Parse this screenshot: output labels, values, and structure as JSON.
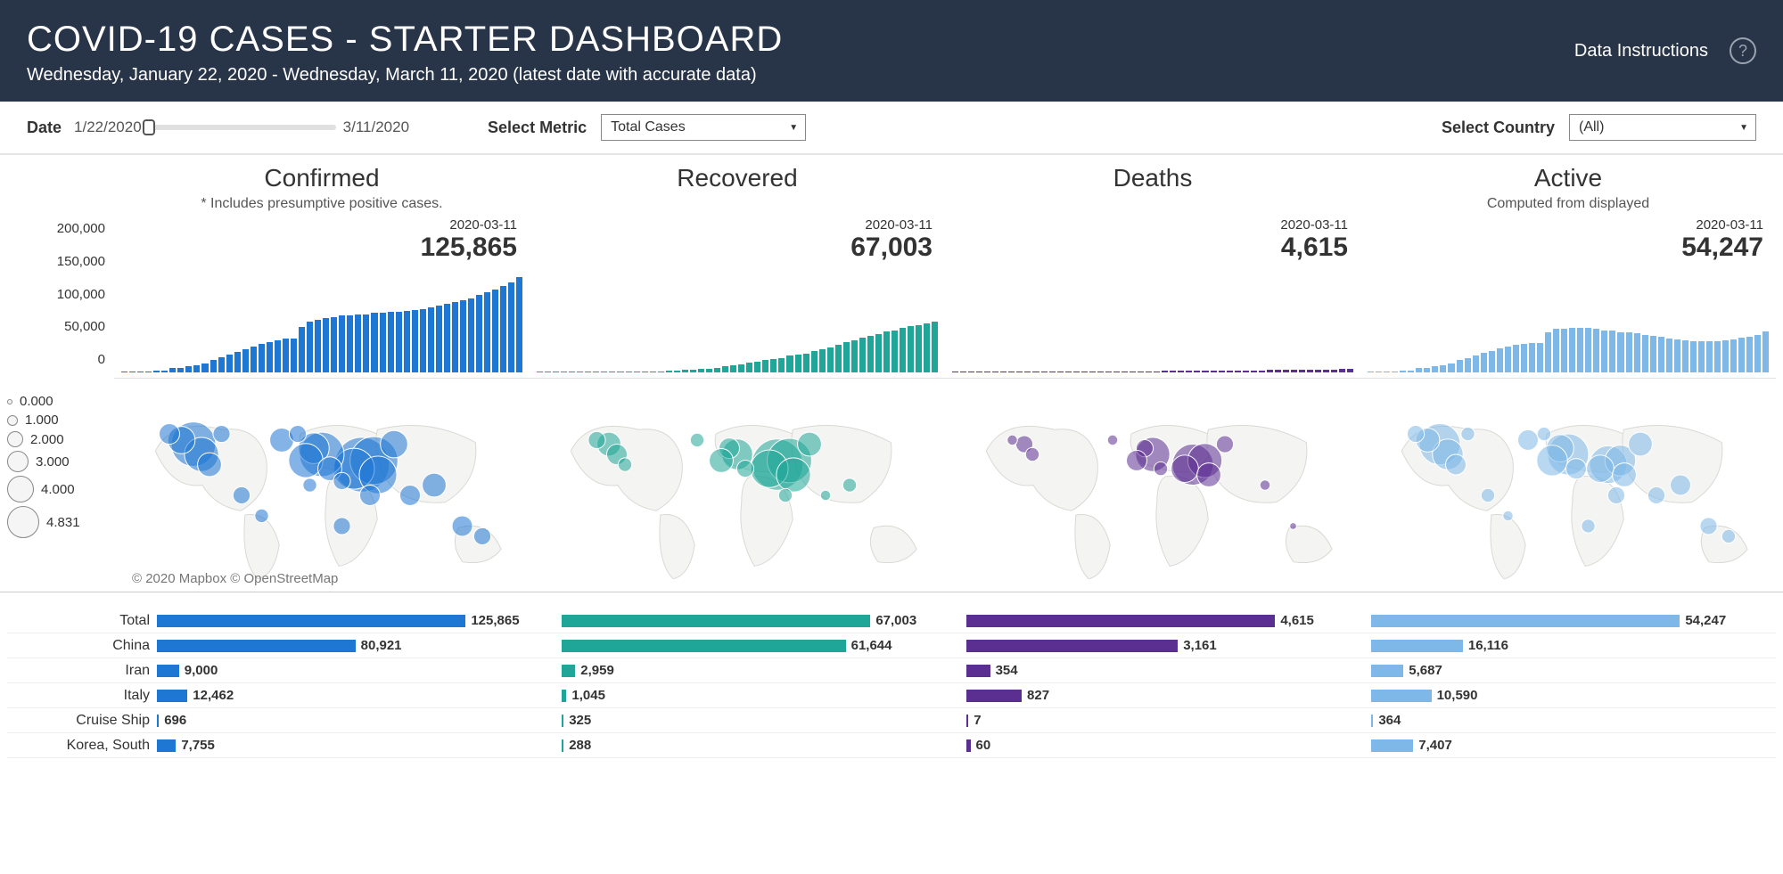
{
  "header": {
    "title": "COVID-19 CASES - STARTER DASHBOARD",
    "subtitle": "Wednesday, January 22, 2020 - Wednesday, March 11, 2020 (latest date with accurate data)",
    "instructions_link": "Data Instructions",
    "help": "?"
  },
  "controls": {
    "date_label": "Date",
    "date_start": "1/22/2020",
    "date_end": "3/11/2020",
    "metric_label": "Select Metric",
    "metric_value": "Total Cases",
    "country_label": "Select Country",
    "country_value": "(All)"
  },
  "colors": {
    "confirmed": "#1f77d4",
    "recovered": "#1fa698",
    "deaths": "#5b2e91",
    "active": "#7db8e8",
    "header_bg": "#283447"
  },
  "panels": [
    {
      "key": "confirmed",
      "title": "Confirmed",
      "note": "* Includes presumptive positive cases.",
      "callout_date": "2020-03-11",
      "callout_value": "125,865",
      "color": "#1f77d4"
    },
    {
      "key": "recovered",
      "title": "Recovered",
      "note": "",
      "callout_date": "2020-03-11",
      "callout_value": "67,003",
      "color": "#1fa698"
    },
    {
      "key": "deaths",
      "title": "Deaths",
      "note": "",
      "callout_date": "2020-03-11",
      "callout_value": "4,615",
      "color": "#5b2e91"
    },
    {
      "key": "active",
      "title": "Active",
      "note": "Computed from displayed",
      "callout_date": "2020-03-11",
      "callout_value": "54,247",
      "color": "#7db8e8"
    }
  ],
  "y_axis": {
    "max": 200000,
    "ticks": [
      "200,000",
      "150,000",
      "100,000",
      "50,000",
      "0"
    ]
  },
  "timeseries": {
    "confirmed": [
      555,
      653,
      941,
      1434,
      2118,
      2927,
      5578,
      6166,
      8234,
      9927,
      12038,
      16787,
      19881,
      23892,
      27635,
      30794,
      34391,
      37120,
      40150,
      42762,
      44802,
      45221,
      60368,
      66885,
      69030,
      71224,
      73258,
      75136,
      75639,
      76197,
      76819,
      78572,
      78958,
      79561,
      80406,
      81388,
      82746,
      84112,
      86011,
      88369,
      90306,
      92840,
      95120,
      97886,
      101801,
      105847,
      109821,
      113590,
      118620,
      125865
    ],
    "recovered": [
      28,
      30,
      36,
      39,
      52,
      61,
      107,
      126,
      143,
      222,
      284,
      472,
      623,
      852,
      1124,
      1487,
      2011,
      2616,
      3244,
      3946,
      4683,
      5150,
      6295,
      8058,
      9395,
      10865,
      12583,
      14352,
      16121,
      18177,
      18890,
      22886,
      23394,
      25227,
      27905,
      30384,
      33277,
      36711,
      39782,
      42716,
      45602,
      48228,
      51170,
      53796,
      55865,
      58358,
      60694,
      62494,
      64404,
      67003
    ],
    "deaths": [
      17,
      18,
      26,
      42,
      56,
      82,
      131,
      133,
      171,
      213,
      259,
      362,
      426,
      492,
      564,
      634,
      719,
      806,
      906,
      1013,
      1113,
      1118,
      1371,
      1523,
      1666,
      1770,
      1868,
      2007,
      2122,
      2247,
      2251,
      2458,
      2469,
      2629,
      2708,
      2770,
      2814,
      2872,
      2941,
      2996,
      3085,
      3160,
      3254,
      3348,
      3460,
      3558,
      3802,
      3988,
      4262,
      4615
    ],
    "active": [
      510,
      605,
      879,
      1353,
      2010,
      2784,
      5340,
      5907,
      7920,
      9492,
      11495,
      15953,
      18832,
      22548,
      25947,
      28673,
      31661,
      33698,
      36000,
      37803,
      39006,
      38953,
      52702,
      57304,
      57969,
      58589,
      58807,
      58777,
      57396,
      55773,
      55678,
      53228,
      53095,
      51705,
      49793,
      48234,
      46655,
      44529,
      43288,
      42657,
      41619,
      41452,
      40696,
      40742,
      42476,
      43931,
      45325,
      47108,
      49954,
      54247
    ]
  },
  "bubble_legend": {
    "values": [
      "0.000",
      "1.000",
      "2.000",
      "3.000",
      "4.000",
      "4.831"
    ],
    "sizes": [
      6,
      12,
      18,
      24,
      30,
      36
    ]
  },
  "map_attrib": "© 2020 Mapbox  © OpenStreetMap",
  "map_bubbles": {
    "confirmed": [
      {
        "x": 0.6,
        "y": 0.4,
        "r": 32
      },
      {
        "x": 0.63,
        "y": 0.38,
        "r": 28
      },
      {
        "x": 0.58,
        "y": 0.42,
        "r": 24
      },
      {
        "x": 0.64,
        "y": 0.45,
        "r": 22
      },
      {
        "x": 0.5,
        "y": 0.35,
        "r": 26
      },
      {
        "x": 0.48,
        "y": 0.32,
        "r": 18
      },
      {
        "x": 0.46,
        "y": 0.38,
        "r": 20
      },
      {
        "x": 0.52,
        "y": 0.42,
        "r": 14
      },
      {
        "x": 0.18,
        "y": 0.3,
        "r": 26
      },
      {
        "x": 0.2,
        "y": 0.35,
        "r": 20
      },
      {
        "x": 0.15,
        "y": 0.28,
        "r": 16
      },
      {
        "x": 0.22,
        "y": 0.4,
        "r": 14
      },
      {
        "x": 0.12,
        "y": 0.25,
        "r": 12
      },
      {
        "x": 0.3,
        "y": 0.55,
        "r": 10
      },
      {
        "x": 0.35,
        "y": 0.65,
        "r": 8
      },
      {
        "x": 0.55,
        "y": 0.7,
        "r": 10
      },
      {
        "x": 0.72,
        "y": 0.55,
        "r": 12
      },
      {
        "x": 0.78,
        "y": 0.5,
        "r": 14
      },
      {
        "x": 0.85,
        "y": 0.7,
        "r": 12
      },
      {
        "x": 0.9,
        "y": 0.75,
        "r": 10
      },
      {
        "x": 0.68,
        "y": 0.3,
        "r": 16
      },
      {
        "x": 0.4,
        "y": 0.28,
        "r": 14
      },
      {
        "x": 0.44,
        "y": 0.25,
        "r": 10
      },
      {
        "x": 0.25,
        "y": 0.25,
        "r": 10
      },
      {
        "x": 0.62,
        "y": 0.55,
        "r": 12
      },
      {
        "x": 0.55,
        "y": 0.48,
        "r": 10
      },
      {
        "x": 0.47,
        "y": 0.5,
        "r": 8
      }
    ],
    "recovered": [
      {
        "x": 0.6,
        "y": 0.4,
        "r": 30
      },
      {
        "x": 0.63,
        "y": 0.38,
        "r": 26
      },
      {
        "x": 0.58,
        "y": 0.42,
        "r": 22
      },
      {
        "x": 0.64,
        "y": 0.45,
        "r": 20
      },
      {
        "x": 0.5,
        "y": 0.35,
        "r": 18
      },
      {
        "x": 0.48,
        "y": 0.32,
        "r": 12
      },
      {
        "x": 0.46,
        "y": 0.38,
        "r": 14
      },
      {
        "x": 0.52,
        "y": 0.42,
        "r": 10
      },
      {
        "x": 0.18,
        "y": 0.3,
        "r": 14
      },
      {
        "x": 0.2,
        "y": 0.35,
        "r": 12
      },
      {
        "x": 0.15,
        "y": 0.28,
        "r": 10
      },
      {
        "x": 0.22,
        "y": 0.4,
        "r": 8
      },
      {
        "x": 0.68,
        "y": 0.3,
        "r": 14
      },
      {
        "x": 0.4,
        "y": 0.28,
        "r": 8
      },
      {
        "x": 0.78,
        "y": 0.5,
        "r": 8
      },
      {
        "x": 0.72,
        "y": 0.55,
        "r": 6
      },
      {
        "x": 0.62,
        "y": 0.55,
        "r": 8
      }
    ],
    "deaths": [
      {
        "x": 0.6,
        "y": 0.4,
        "r": 24
      },
      {
        "x": 0.63,
        "y": 0.38,
        "r": 20
      },
      {
        "x": 0.58,
        "y": 0.42,
        "r": 16
      },
      {
        "x": 0.64,
        "y": 0.45,
        "r": 14
      },
      {
        "x": 0.5,
        "y": 0.35,
        "r": 20
      },
      {
        "x": 0.48,
        "y": 0.32,
        "r": 10
      },
      {
        "x": 0.46,
        "y": 0.38,
        "r": 12
      },
      {
        "x": 0.52,
        "y": 0.42,
        "r": 8
      },
      {
        "x": 0.18,
        "y": 0.3,
        "r": 10
      },
      {
        "x": 0.2,
        "y": 0.35,
        "r": 8
      },
      {
        "x": 0.15,
        "y": 0.28,
        "r": 6
      },
      {
        "x": 0.68,
        "y": 0.3,
        "r": 10
      },
      {
        "x": 0.78,
        "y": 0.5,
        "r": 6
      },
      {
        "x": 0.85,
        "y": 0.7,
        "r": 4
      },
      {
        "x": 0.4,
        "y": 0.28,
        "r": 6
      }
    ],
    "active": [
      {
        "x": 0.6,
        "y": 0.4,
        "r": 22
      },
      {
        "x": 0.63,
        "y": 0.38,
        "r": 18
      },
      {
        "x": 0.58,
        "y": 0.42,
        "r": 16
      },
      {
        "x": 0.64,
        "y": 0.45,
        "r": 14
      },
      {
        "x": 0.5,
        "y": 0.35,
        "r": 24
      },
      {
        "x": 0.48,
        "y": 0.32,
        "r": 16
      },
      {
        "x": 0.46,
        "y": 0.38,
        "r": 18
      },
      {
        "x": 0.52,
        "y": 0.42,
        "r": 12
      },
      {
        "x": 0.18,
        "y": 0.3,
        "r": 24
      },
      {
        "x": 0.2,
        "y": 0.35,
        "r": 18
      },
      {
        "x": 0.15,
        "y": 0.28,
        "r": 14
      },
      {
        "x": 0.22,
        "y": 0.4,
        "r": 12
      },
      {
        "x": 0.12,
        "y": 0.25,
        "r": 10
      },
      {
        "x": 0.3,
        "y": 0.55,
        "r": 8
      },
      {
        "x": 0.35,
        "y": 0.65,
        "r": 6
      },
      {
        "x": 0.55,
        "y": 0.7,
        "r": 8
      },
      {
        "x": 0.72,
        "y": 0.55,
        "r": 10
      },
      {
        "x": 0.78,
        "y": 0.5,
        "r": 12
      },
      {
        "x": 0.85,
        "y": 0.7,
        "r": 10
      },
      {
        "x": 0.9,
        "y": 0.75,
        "r": 8
      },
      {
        "x": 0.68,
        "y": 0.3,
        "r": 14
      },
      {
        "x": 0.4,
        "y": 0.28,
        "r": 12
      },
      {
        "x": 0.44,
        "y": 0.25,
        "r": 8
      },
      {
        "x": 0.25,
        "y": 0.25,
        "r": 8
      },
      {
        "x": 0.62,
        "y": 0.55,
        "r": 10
      }
    ]
  },
  "country_rows": [
    {
      "name": "Total",
      "values": {
        "confirmed": 125865,
        "recovered": 67003,
        "deaths": 4615,
        "active": 54247
      }
    },
    {
      "name": "China",
      "values": {
        "confirmed": 80921,
        "recovered": 61644,
        "deaths": 3161,
        "active": 16116
      }
    },
    {
      "name": "Iran",
      "values": {
        "confirmed": 9000,
        "recovered": 2959,
        "deaths": 354,
        "active": 5687
      }
    },
    {
      "name": "Italy",
      "values": {
        "confirmed": 12462,
        "recovered": 1045,
        "deaths": 827,
        "active": 10590
      }
    },
    {
      "name": "Cruise Ship",
      "values": {
        "confirmed": 696,
        "recovered": 325,
        "deaths": 7,
        "active": 364
      }
    },
    {
      "name": "Korea, South",
      "values": {
        "confirmed": 7755,
        "recovered": 288,
        "deaths": 60,
        "active": 7407
      }
    }
  ],
  "country_max": {
    "confirmed": 125865,
    "recovered": 67003,
    "deaths": 4615,
    "active": 54247
  }
}
